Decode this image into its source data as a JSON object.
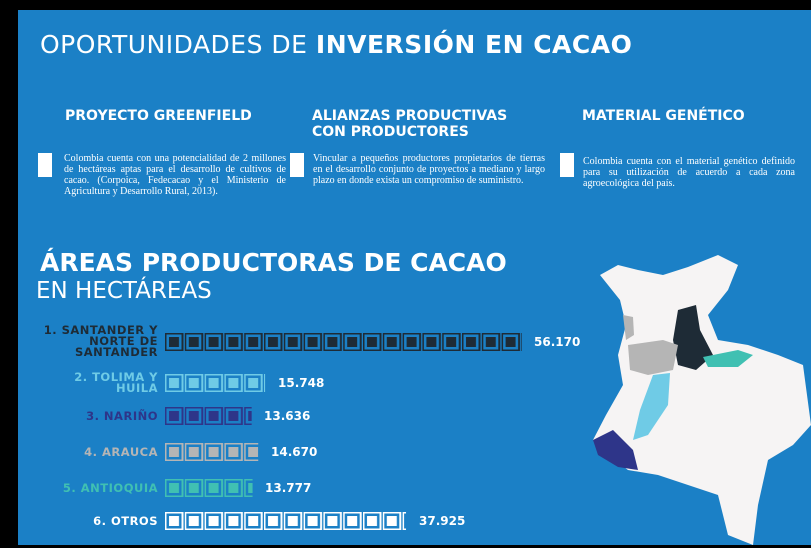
{
  "header": {
    "title_light": "OPORTUNIDADES DE",
    "title_bold": "INVERSIÓN EN CACAO"
  },
  "columns": [
    {
      "heading": "PROYECTO GREENFIELD",
      "text": "Colombia cuenta con una potencialidad de 2 millones de hectáreas aptas para el desarrollo de cultivos de cacao. (Corpoica, Fedecacao y el Ministerio de Agricultura y Desarrollo Rural, 2013)."
    },
    {
      "heading": "ALIANZAS PRODUCTIVAS CON PRODUCTORES",
      "text": "Vincular a pequeños productores propietarios de tierras en el desarrollo conjunto de proyectos a mediano y largo plazo en donde exista un compromiso de suministro."
    },
    {
      "heading": "MATERIAL GENÉTICO",
      "text": "Colombia cuenta con el material genético definido para su utilización de acuerdo a cada zona agroecológica del país."
    }
  ],
  "chart_data": {
    "type": "bar",
    "title": "ÁREAS PRODUCTORAS DE CACAO",
    "subtitle": "EN HECTÁREAS",
    "categories": [
      "1. SANTANDER Y NORTE DE SANTANDER",
      "2. TOLIMA Y HUILA",
      "3. NARIÑO",
      "4. ARAUCA",
      "5. ANTIOQUIA",
      "6. OTROS"
    ],
    "values": [
      56170,
      15748,
      13636,
      14670,
      13777,
      37925
    ],
    "value_labels": [
      "56.170",
      "15.748",
      "13.636",
      "14.670",
      "13.777",
      "37.925"
    ],
    "colors": [
      "#1e2b36",
      "#6fcbe6",
      "#2e3589",
      "#b5b5b5",
      "#40c0b2",
      "#ffffff"
    ]
  }
}
